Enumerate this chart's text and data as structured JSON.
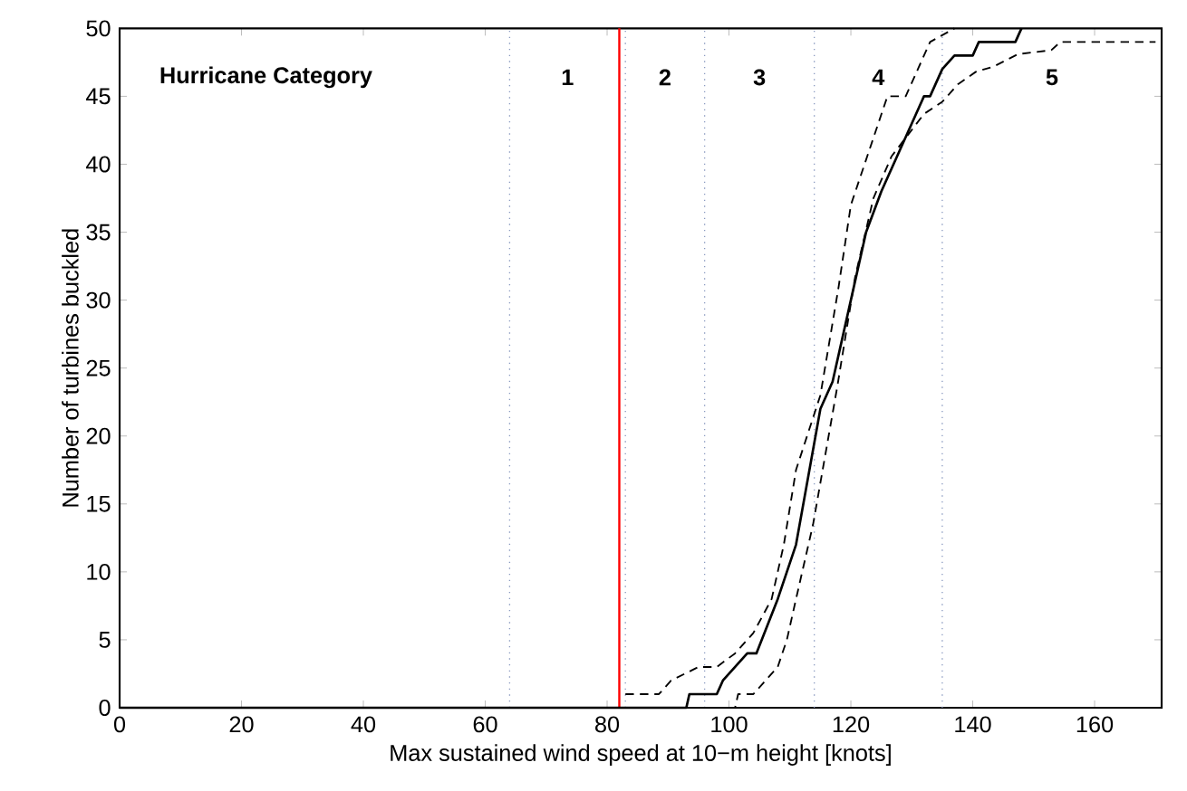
{
  "chart_data": {
    "type": "line",
    "xlabel": "Max sustained wind speed at 10−m height [knots]",
    "ylabel": "Number of turbines buckled",
    "xlim": [
      0,
      171
    ],
    "ylim": [
      0,
      50
    ],
    "xticks": [
      0,
      20,
      40,
      60,
      80,
      100,
      120,
      140,
      160
    ],
    "yticks": [
      0,
      5,
      10,
      15,
      20,
      25,
      30,
      35,
      40,
      45,
      50
    ],
    "grid": false,
    "marker": "none",
    "series": [
      {
        "color": "#000000",
        "line_style": "solid",
        "x": [
          0,
          93,
          93.5,
          98,
          99,
          101,
          103,
          104.5,
          108,
          109.5,
          111,
          115,
          117,
          120,
          122.5,
          125,
          128,
          132,
          133,
          135,
          137,
          140,
          141,
          147,
          148
        ],
        "values": [
          0,
          0,
          1,
          1,
          2,
          3,
          4,
          4,
          8,
          10,
          12,
          22,
          24,
          30,
          35,
          38,
          41,
          45,
          45,
          47,
          48,
          48,
          49,
          49,
          50
        ]
      },
      {
        "color": "#000000",
        "line_style": "dashed",
        "x": [
          83,
          88.5,
          90.5,
          95,
          98,
          101,
          104,
          107,
          109,
          111,
          115,
          118,
          120,
          123,
          126,
          129,
          131,
          133,
          135,
          137
        ],
        "values": [
          1,
          1,
          2,
          3,
          3,
          4,
          5.5,
          8,
          12,
          17.5,
          23,
          31,
          37,
          41,
          45,
          45,
          47,
          49,
          49.5,
          50
        ]
      },
      {
        "color": "#000000",
        "line_style": "dashed",
        "x": [
          0,
          101,
          101.5,
          104,
          106,
          108,
          109.5,
          111,
          113.8,
          117.8,
          120.7,
          123.7,
          126.7,
          132,
          135,
          137.6,
          140.5,
          143.5,
          147.4,
          152.9,
          154.4,
          170
        ],
        "values": [
          0,
          0,
          1,
          1,
          2,
          3,
          5,
          8,
          13.5,
          23.7,
          31.7,
          37.5,
          40.6,
          43.7,
          44.6,
          45.9,
          46.8,
          47.2,
          48.1,
          48.4,
          49,
          49
        ]
      }
    ],
    "ref_lines": [
      {
        "axis": "x",
        "value": 64,
        "color": "#8a9ac0",
        "line_style": "dotted"
      },
      {
        "axis": "x",
        "value": 83,
        "color": "#8a9ac0",
        "line_style": "dotted"
      },
      {
        "axis": "x",
        "value": 96,
        "color": "#8a9ac0",
        "line_style": "dotted"
      },
      {
        "axis": "x",
        "value": 114,
        "color": "#8a9ac0",
        "line_style": "dotted"
      },
      {
        "axis": "x",
        "value": 135,
        "color": "#8a9ac0",
        "line_style": "dotted"
      },
      {
        "axis": "x",
        "value": 82,
        "color": "#ff0000",
        "line_style": "solid"
      }
    ],
    "annotations": [
      "**Hurricane Category**",
      "**1**",
      "**2**",
      "**3**",
      "**4**",
      "**5**"
    ]
  }
}
